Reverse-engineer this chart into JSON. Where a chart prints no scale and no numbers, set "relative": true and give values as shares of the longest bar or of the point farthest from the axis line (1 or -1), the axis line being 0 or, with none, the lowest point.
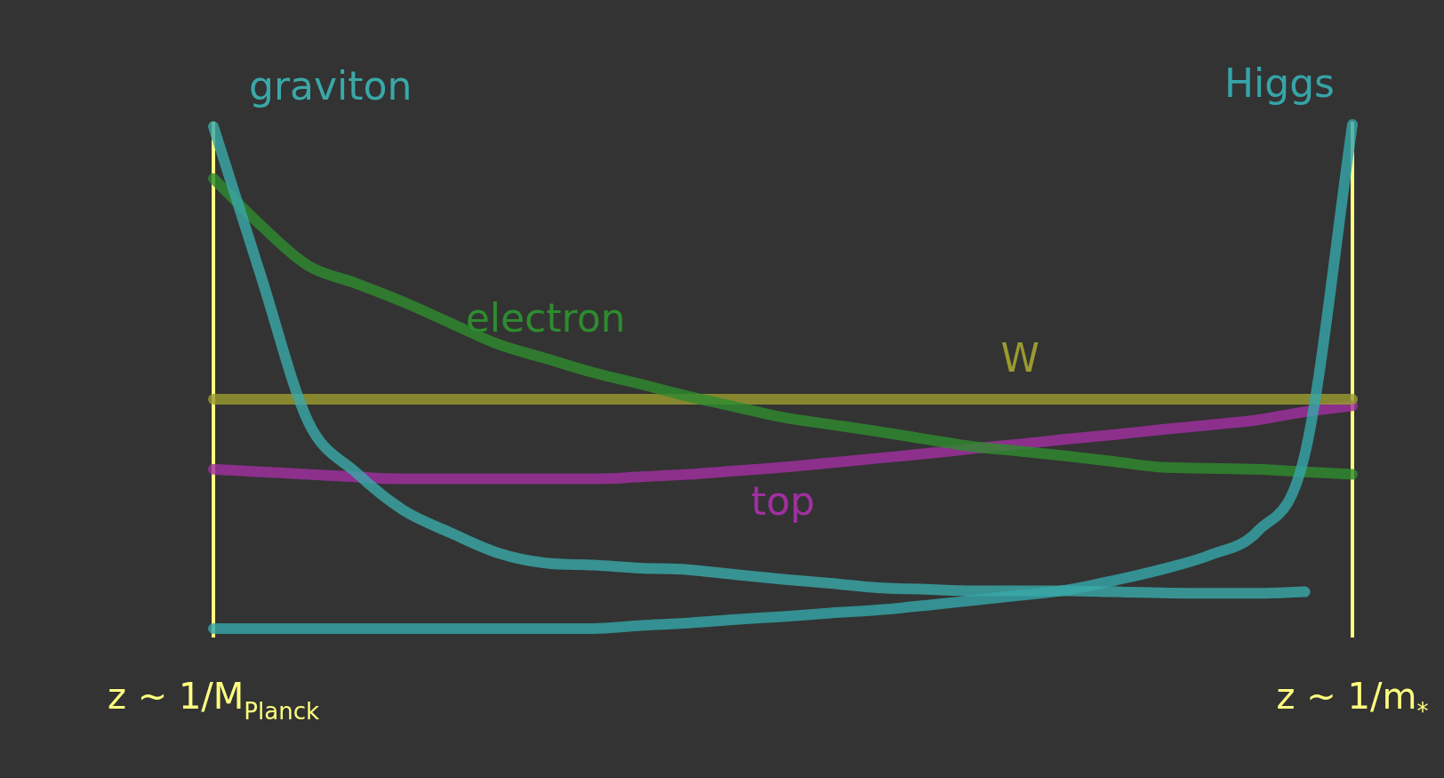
{
  "chart_data": {
    "type": "line",
    "relative": true,
    "categories": [
      "z ~ 1/M$_{Planck}$",
      null,
      null,
      null,
      null,
      null,
      null,
      null,
      null,
      null,
      null,
      null,
      null,
      null,
      null,
      null,
      null,
      null,
      null,
      null,
      null,
      null,
      null,
      null,
      "z ~ 1/m$_{*}$"
    ],
    "legend": false,
    "marker": "none",
    "line_style": "solid",
    "ref_lines": [
      {
        "axis": "x",
        "value": "z ~ 1/M$_{Planck}$",
        "color": "#ffff80"
      },
      {
        "axis": "x",
        "value": "z ~ 1/m$_{*}$",
        "color": "#ffff80"
      }
    ],
    "series": [
      {
        "name": "graviton",
        "color": "#3aa8a8",
        "values": [
          0.996,
          0.7,
          0.41,
          0.31,
          0.235,
          0.19,
          0.15,
          0.13,
          0.126,
          0.12,
          0.117,
          0.107,
          0.098,
          0.09,
          0.081,
          0.078,
          0.075,
          0.075,
          0.075,
          0.073,
          0.071,
          0.07,
          0.07,
          0.073,
          null
        ]
      },
      {
        "name": "Higgs",
        "color": "#35a5a8",
        "values": [
          0,
          0,
          0,
          0,
          0,
          0,
          0,
          0,
          0,
          0.006,
          0.011,
          0.018,
          0.024,
          0.031,
          0.037,
          0.046,
          0.056,
          0.066,
          0.077,
          0.096,
          0.118,
          0.146,
          0.193,
          0.347,
          1.0
        ]
      },
      {
        "name": "electron",
        "color": "#2e8b2e",
        "values": [
          0.893,
          0.8,
          0.72,
          0.685,
          0.648,
          0.606,
          0.564,
          0.536,
          0.508,
          0.485,
          0.461,
          0.44,
          0.419,
          0.405,
          0.391,
          0.376,
          0.361,
          0.352,
          0.342,
          0.331,
          0.32,
          0.318,
          0.316,
          0.311,
          0.306
        ]
      },
      {
        "name": "W",
        "color": "#9a9a30",
        "values": [
          0.455,
          0.455,
          0.455,
          0.455,
          0.455,
          0.455,
          0.455,
          0.455,
          0.455,
          0.455,
          0.455,
          0.455,
          0.455,
          0.455,
          0.455,
          0.455,
          0.455,
          0.455,
          0.455,
          0.455,
          0.455,
          0.455,
          0.455,
          0.455,
          0.455
        ]
      },
      {
        "name": "top",
        "color": "#a030a0",
        "values": [
          0.316,
          0.311,
          0.306,
          0.301,
          0.297,
          0.297,
          0.297,
          0.297,
          0.297,
          0.301,
          0.306,
          0.313,
          0.32,
          0.329,
          0.338,
          0.347,
          0.357,
          0.366,
          0.376,
          0.385,
          0.395,
          0.404,
          0.414,
          0.43,
          0.442
        ]
      }
    ]
  }
}
